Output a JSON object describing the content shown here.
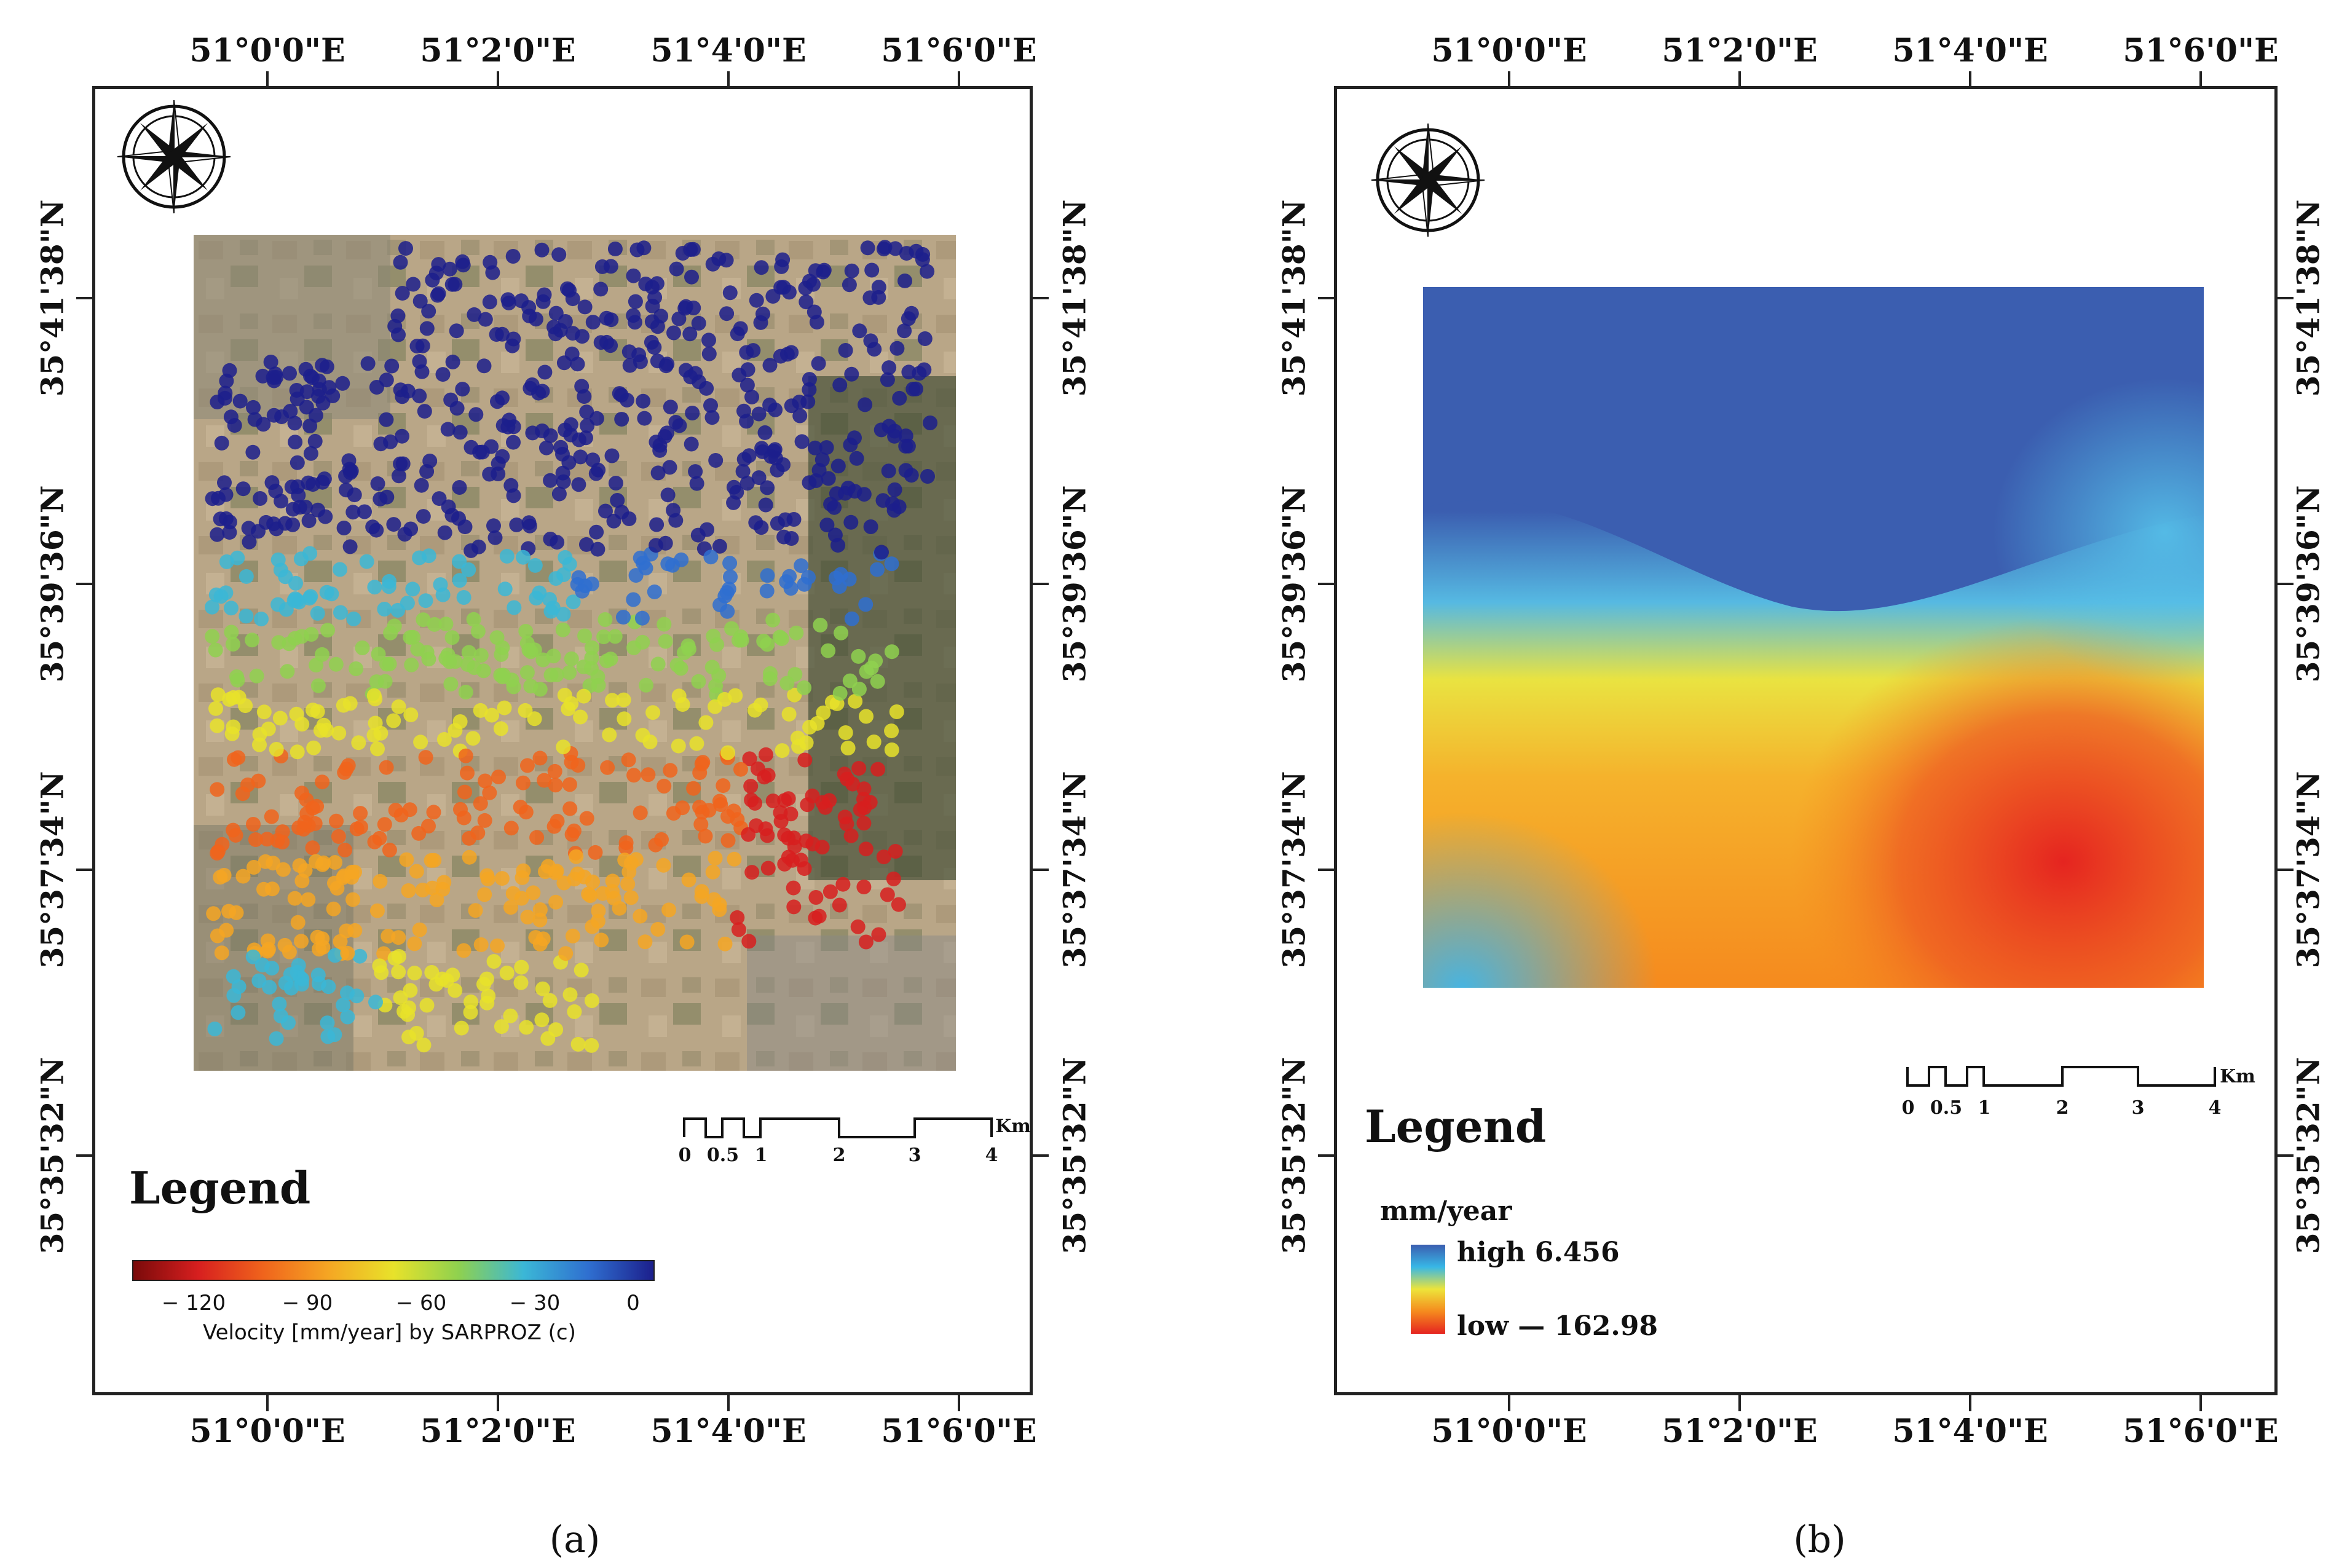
{
  "panel_a": {
    "caption": "(a)",
    "lon_ticks": [
      "51°0'0\"E",
      "51°2'0\"E",
      "51°4'0\"E",
      "51°6'0\"E"
    ],
    "lat_ticks": [
      "35°41'38\"N",
      "35°39'36\"N",
      "35°37'34\"N",
      "35°35'32\"N"
    ],
    "legend_title": "Legend",
    "colorbar": {
      "ticks": [
        "− 120",
        "− 90",
        "− 60",
        "− 30",
        "0"
      ],
      "title": "Velocity [mm/year] by SARPROZ (c)",
      "colors": [
        "#7a0a0a",
        "#d71f1f",
        "#f0641c",
        "#f5a623",
        "#e8e22a",
        "#8fd14f",
        "#3bb7d6",
        "#2f6fd0",
        "#1c1f8c"
      ]
    },
    "scale_bar": {
      "unit": "Km",
      "labels": [
        "0",
        "0.5",
        "1",
        "2",
        "3",
        "4"
      ]
    }
  },
  "panel_b": {
    "caption": "(b)",
    "lon_ticks": [
      "51°0'0\"E",
      "51°2'0\"E",
      "51°4'0\"E",
      "51°6'0\"E"
    ],
    "lat_ticks": [
      "35°41'38\"N",
      "35°39'36\"N",
      "35°37'34\"N",
      "35°35'32\"N"
    ],
    "legend_title": "Legend",
    "unit": "mm/year",
    "high_label": "high 6.456",
    "low_label": "low  — 162.98",
    "gradient_colors": [
      "#3b5eb0",
      "#38b7e6",
      "#ede43a",
      "#f58a1e",
      "#e52420"
    ],
    "scale_bar": {
      "unit": "Km",
      "labels": [
        "0",
        "0.5",
        "1",
        "2",
        "3",
        "4"
      ]
    }
  }
}
